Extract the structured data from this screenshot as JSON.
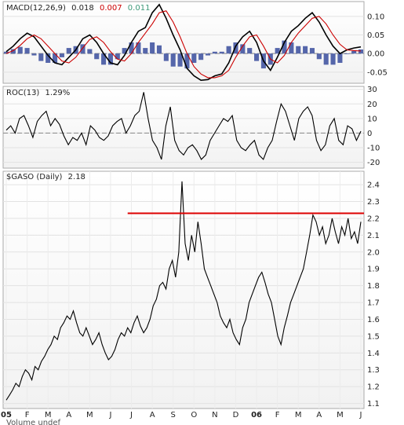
{
  "chart_data": [
    {
      "type": "line",
      "panel": "macd",
      "title_prefix": "MACD(12,26,9)",
      "legend": [
        {
          "label": "0.018",
          "color": "#000000"
        },
        {
          "label": "0.007",
          "color": "#cc0000"
        },
        {
          "label": "0.011",
          "color": "#3f9a7a"
        }
      ],
      "ylim": [
        -0.08,
        0.14
      ],
      "yticks": [
        0.1,
        0.05,
        0.0,
        -0.05
      ],
      "ytick_labels": [
        "0.10",
        "0.05",
        "0.00",
        "-0.05"
      ],
      "zero_line": 0.0,
      "series": [
        {
          "name": "MACD",
          "color": "#000000",
          "weight": "heavy",
          "values": [
            0.005,
            0.02,
            0.04,
            0.055,
            0.045,
            0.02,
            -0.005,
            -0.025,
            -0.03,
            -0.01,
            0.01,
            0.04,
            0.05,
            0.03,
            0.0,
            -0.025,
            -0.03,
            -0.005,
            0.03,
            0.06,
            0.07,
            0.11,
            0.132,
            0.095,
            0.05,
            0.01,
            -0.04,
            -0.06,
            -0.072,
            -0.07,
            -0.06,
            -0.055,
            -0.025,
            0.02,
            0.045,
            0.06,
            0.03,
            -0.02,
            -0.045,
            -0.01,
            0.03,
            0.06,
            0.075,
            0.095,
            0.11,
            0.085,
            0.05,
            0.02,
            0.0,
            0.01,
            0.015,
            0.018
          ]
        },
        {
          "name": "Signal",
          "color": "#cc0000",
          "weight": "thin",
          "values": [
            0.0,
            0.008,
            0.022,
            0.04,
            0.05,
            0.04,
            0.02,
            0.0,
            -0.02,
            -0.025,
            -0.01,
            0.015,
            0.038,
            0.045,
            0.03,
            0.005,
            -0.015,
            -0.02,
            0.0,
            0.03,
            0.055,
            0.08,
            0.11,
            0.115,
            0.085,
            0.045,
            0.0,
            -0.035,
            -0.055,
            -0.065,
            -0.065,
            -0.06,
            -0.045,
            -0.01,
            0.02,
            0.045,
            0.05,
            0.02,
            -0.015,
            -0.025,
            -0.005,
            0.03,
            0.055,
            0.075,
            0.095,
            0.1,
            0.08,
            0.05,
            0.025,
            0.01,
            0.008,
            0.007
          ]
        },
        {
          "name": "Histogram",
          "color": "#5566aa",
          "style": "bars",
          "values": [
            0.005,
            0.012,
            0.018,
            0.015,
            -0.005,
            -0.02,
            -0.025,
            -0.025,
            -0.01,
            0.015,
            0.02,
            0.025,
            0.012,
            -0.015,
            -0.03,
            -0.03,
            -0.015,
            0.015,
            0.03,
            0.03,
            0.015,
            0.03,
            0.022,
            -0.02,
            -0.035,
            -0.035,
            -0.04,
            -0.025,
            -0.017,
            -0.005,
            0.005,
            0.005,
            0.02,
            0.03,
            0.025,
            0.015,
            -0.02,
            -0.04,
            -0.03,
            0.015,
            0.035,
            0.03,
            0.02,
            0.02,
            0.015,
            -0.015,
            -0.03,
            -0.03,
            -0.025,
            0.0,
            0.007,
            0.011
          ]
        }
      ]
    },
    {
      "type": "line",
      "panel": "roc",
      "title_prefix": "ROC(13)",
      "legend": [
        {
          "label": "1.29%",
          "color": "#000000"
        }
      ],
      "ylim": [
        -24,
        32
      ],
      "yticks": [
        30,
        20,
        10,
        0,
        -10,
        -20
      ],
      "ytick_labels": [
        "30",
        "20",
        "10",
        "0",
        "-10",
        "-20"
      ],
      "zero_line": 0,
      "series": [
        {
          "name": "ROC",
          "color": "#000000",
          "values": [
            2,
            5,
            0,
            10,
            12,
            5,
            -3,
            8,
            12,
            15,
            5,
            10,
            6,
            -2,
            -8,
            -3,
            -5,
            0,
            -8,
            5,
            2,
            -3,
            -5,
            -2,
            5,
            8,
            10,
            0,
            5,
            12,
            15,
            28,
            10,
            -5,
            -10,
            -18,
            5,
            18,
            -5,
            -12,
            -15,
            -10,
            -8,
            -12,
            -18,
            -15,
            -5,
            0,
            5,
            10,
            8,
            12,
            -5,
            -10,
            -12,
            -8,
            -5,
            -15,
            -18,
            -10,
            -5,
            8,
            20,
            15,
            5,
            -5,
            10,
            15,
            18,
            12,
            -5,
            -12,
            -8,
            5,
            10,
            -5,
            -8,
            5,
            3,
            -5,
            1.29
          ]
        }
      ]
    },
    {
      "type": "line",
      "panel": "price",
      "title_prefix": "$GASO (Daily)",
      "legend": [
        {
          "label": "2.18",
          "color": "#000000"
        }
      ],
      "ylim": [
        1.07,
        2.48
      ],
      "yticks": [
        2.4,
        2.3,
        2.2,
        2.1,
        2.0,
        1.9,
        1.8,
        1.7,
        1.6,
        1.5,
        1.4,
        1.3,
        1.2,
        1.1
      ],
      "ytick_labels": [
        "2.4",
        "2.3",
        "2.2",
        "2.1",
        "2.0",
        "1.9",
        "1.8",
        "1.7",
        "1.6",
        "1.5",
        "1.4",
        "1.3",
        "1.2",
        "1.1"
      ],
      "series": [
        {
          "name": "$GASO",
          "color": "#000000",
          "values": [
            1.12,
            1.15,
            1.18,
            1.22,
            1.2,
            1.26,
            1.3,
            1.28,
            1.24,
            1.32,
            1.3,
            1.35,
            1.38,
            1.42,
            1.45,
            1.5,
            1.48,
            1.55,
            1.58,
            1.62,
            1.6,
            1.65,
            1.58,
            1.52,
            1.5,
            1.55,
            1.5,
            1.45,
            1.48,
            1.52,
            1.45,
            1.4,
            1.36,
            1.38,
            1.42,
            1.48,
            1.52,
            1.5,
            1.55,
            1.52,
            1.58,
            1.62,
            1.56,
            1.52,
            1.55,
            1.6,
            1.68,
            1.72,
            1.8,
            1.82,
            1.78,
            1.9,
            1.95,
            1.85,
            2.0,
            2.42,
            2.05,
            1.95,
            2.1,
            2.0,
            2.18,
            2.05,
            1.9,
            1.85,
            1.8,
            1.75,
            1.7,
            1.62,
            1.58,
            1.55,
            1.6,
            1.52,
            1.48,
            1.45,
            1.55,
            1.6,
            1.7,
            1.75,
            1.8,
            1.85,
            1.88,
            1.82,
            1.75,
            1.7,
            1.6,
            1.5,
            1.45,
            1.55,
            1.62,
            1.7,
            1.75,
            1.8,
            1.85,
            1.9,
            2.0,
            2.1,
            2.22,
            2.18,
            2.1,
            2.15,
            2.05,
            2.1,
            2.2,
            2.12,
            2.05,
            2.15,
            2.1,
            2.2,
            2.08,
            2.12,
            2.05,
            2.18
          ]
        }
      ],
      "resistance": {
        "value": 2.23,
        "color": "#dd0000",
        "start_index": 38
      },
      "x_tick_labels": [
        "05",
        "F",
        "M",
        "A",
        "M",
        "J",
        "J",
        "A",
        "S",
        "O",
        "N",
        "D",
        "06",
        "F",
        "M",
        "A",
        "M",
        "J"
      ]
    }
  ],
  "footer": {
    "text": "Volume undef"
  }
}
